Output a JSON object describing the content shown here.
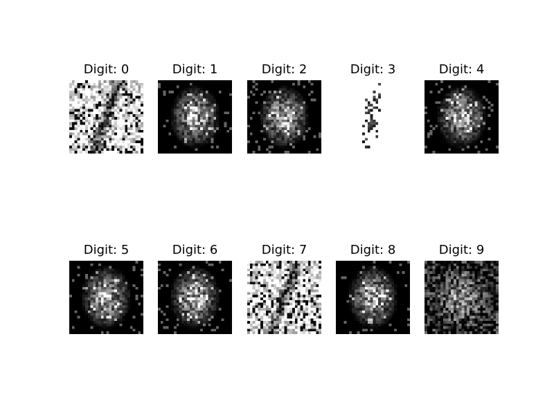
{
  "chart_data": {
    "type": "heatmap",
    "grid": {
      "rows": 2,
      "cols": 5
    },
    "axes": "off",
    "image_resolution": [
      28,
      28
    ],
    "colormap": "gray",
    "panels": [
      {
        "title": "Digit: 0",
        "mode": "noisy_bright"
      },
      {
        "title": "Digit: 1",
        "mode": "dark_blob"
      },
      {
        "title": "Digit: 2",
        "mode": "dark_blob"
      },
      {
        "title": "Digit: 3",
        "mode": "white_sparse"
      },
      {
        "title": "Digit: 4",
        "mode": "dark_blob"
      },
      {
        "title": "Digit: 5",
        "mode": "dark_blob"
      },
      {
        "title": "Digit: 6",
        "mode": "dark_blob"
      },
      {
        "title": "Digit: 7",
        "mode": "noisy_bright"
      },
      {
        "title": "Digit: 8",
        "mode": "dark_blob"
      },
      {
        "title": "Digit: 9",
        "mode": "dark_noisy"
      }
    ]
  }
}
